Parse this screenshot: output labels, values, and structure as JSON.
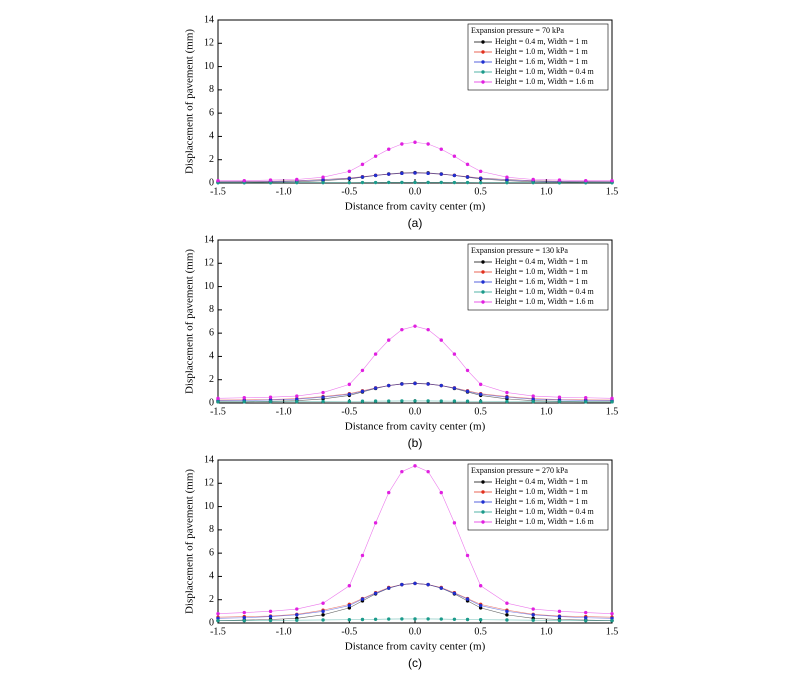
{
  "chart_data": [
    {
      "type": "line",
      "caption": "(a)",
      "xlabel": "Distance from cavity center (m)",
      "ylabel": "Displacement of pavement (mm)",
      "legend_title": "Expansion pressure = 70 kPa",
      "legend": "upper right",
      "x": [
        -1.5,
        -1.3,
        -1.1,
        -0.9,
        -0.7,
        -0.5,
        -0.4,
        -0.3,
        -0.2,
        -0.1,
        0,
        0.1,
        0.2,
        0.3,
        0.4,
        0.5,
        0.7,
        0.9,
        1.1,
        1.3,
        1.5
      ],
      "xlim": [
        -1.5,
        1.5
      ],
      "xticks": [
        -1.5,
        {
          "value": -1,
          "label": "-1.0"
        },
        -0.5,
        {
          "value": 0,
          "label": "0.0"
        },
        0.5,
        {
          "value": 1,
          "label": "1.0"
        },
        1.5
      ],
      "ylim": [
        0,
        14
      ],
      "yticks": [
        0,
        2,
        4,
        6,
        8,
        10,
        12,
        14
      ],
      "series": [
        {
          "name": "Height = 0.4 m, Width = 1 m",
          "color": "#000000",
          "values": [
            0.05,
            0.05,
            0.08,
            0.1,
            0.2,
            0.35,
            0.5,
            0.65,
            0.78,
            0.87,
            0.9,
            0.87,
            0.78,
            0.65,
            0.5,
            0.35,
            0.2,
            0.1,
            0.08,
            0.05,
            0.05
          ]
        },
        {
          "name": "Height = 1.0 m, Width = 1 m",
          "color": "#e0301e",
          "values": [
            0.12,
            0.13,
            0.15,
            0.2,
            0.3,
            0.42,
            0.54,
            0.66,
            0.76,
            0.83,
            0.86,
            0.83,
            0.76,
            0.66,
            0.54,
            0.42,
            0.3,
            0.2,
            0.15,
            0.13,
            0.12
          ]
        },
        {
          "name": "Height = 1.6 m, Width = 1 m",
          "color": "#1f2fd0",
          "values": [
            0.1,
            0.11,
            0.13,
            0.18,
            0.28,
            0.4,
            0.52,
            0.65,
            0.76,
            0.83,
            0.86,
            0.83,
            0.76,
            0.65,
            0.52,
            0.4,
            0.28,
            0.18,
            0.13,
            0.11,
            0.1
          ]
        },
        {
          "name": "Height = 1.0 m, Width = 0.4 m",
          "color": "#1a9a8a",
          "values": [
            0.02,
            0.02,
            0.02,
            0.03,
            0.03,
            0.03,
            0.04,
            0.04,
            0.05,
            0.05,
            0.05,
            0.05,
            0.05,
            0.04,
            0.04,
            0.03,
            0.03,
            0.03,
            0.02,
            0.02,
            0.02
          ]
        },
        {
          "name": "Height = 1.0 m, Width = 1.6 m",
          "color": "#e020e0",
          "values": [
            0.2,
            0.2,
            0.25,
            0.3,
            0.5,
            1.0,
            1.6,
            2.3,
            2.9,
            3.35,
            3.5,
            3.35,
            2.9,
            2.3,
            1.6,
            1.0,
            0.5,
            0.3,
            0.25,
            0.2,
            0.2
          ]
        }
      ]
    },
    {
      "type": "line",
      "caption": "(b)",
      "xlabel": "Distance from cavity center (m)",
      "ylabel": "Displacement of pavement (mm)",
      "legend_title": "Expansion pressure = 130 kPa",
      "legend": "upper right",
      "x": [
        -1.5,
        -1.3,
        -1.1,
        -0.9,
        -0.7,
        -0.5,
        -0.4,
        -0.3,
        -0.2,
        -0.1,
        0,
        0.1,
        0.2,
        0.3,
        0.4,
        0.5,
        0.7,
        0.9,
        1.1,
        1.3,
        1.5
      ],
      "xlim": [
        -1.5,
        1.5
      ],
      "xticks": [
        -1.5,
        {
          "value": -1,
          "label": "-1.0"
        },
        -0.5,
        {
          "value": 0,
          "label": "0.0"
        },
        0.5,
        {
          "value": 1,
          "label": "1.0"
        },
        1.5
      ],
      "ylim": [
        0,
        14
      ],
      "yticks": [
        0,
        2,
        4,
        6,
        8,
        10,
        12,
        14
      ],
      "series": [
        {
          "name": "Height = 0.4 m, Width = 1 m",
          "color": "#000000",
          "values": [
            0.1,
            0.1,
            0.15,
            0.2,
            0.35,
            0.65,
            0.95,
            1.25,
            1.5,
            1.65,
            1.7,
            1.65,
            1.5,
            1.25,
            0.95,
            0.65,
            0.35,
            0.2,
            0.15,
            0.1,
            0.1
          ]
        },
        {
          "name": "Height = 1.0 m, Width = 1 m",
          "color": "#e0301e",
          "values": [
            0.25,
            0.27,
            0.3,
            0.38,
            0.55,
            0.8,
            1.05,
            1.3,
            1.5,
            1.63,
            1.68,
            1.63,
            1.5,
            1.3,
            1.05,
            0.8,
            0.55,
            0.38,
            0.3,
            0.27,
            0.25
          ]
        },
        {
          "name": "Height = 1.6 m, Width = 1 m",
          "color": "#1f2fd0",
          "values": [
            0.2,
            0.22,
            0.26,
            0.33,
            0.5,
            0.75,
            1.0,
            1.28,
            1.5,
            1.63,
            1.68,
            1.63,
            1.5,
            1.28,
            1.0,
            0.75,
            0.5,
            0.33,
            0.26,
            0.22,
            0.2
          ]
        },
        {
          "name": "Height = 1.0 m, Width = 0.4 m",
          "color": "#1a9a8a",
          "values": [
            0.1,
            0.1,
            0.12,
            0.12,
            0.13,
            0.14,
            0.15,
            0.16,
            0.17,
            0.18,
            0.18,
            0.18,
            0.17,
            0.16,
            0.15,
            0.14,
            0.13,
            0.12,
            0.12,
            0.1,
            0.1
          ]
        },
        {
          "name": "Height = 1.0 m, Width = 1.6 m",
          "color": "#e020e0",
          "values": [
            0.4,
            0.45,
            0.5,
            0.6,
            0.9,
            1.6,
            2.8,
            4.2,
            5.4,
            6.3,
            6.6,
            6.3,
            5.4,
            4.2,
            2.8,
            1.6,
            0.9,
            0.6,
            0.5,
            0.45,
            0.4
          ]
        }
      ]
    },
    {
      "type": "line",
      "caption": "(c)",
      "xlabel": "Distance from cavity center (m)",
      "ylabel": "Displacement of pavement (mm)",
      "legend_title": "Expansion pressure = 270 kPa",
      "legend": "upper right",
      "x": [
        -1.5,
        -1.3,
        -1.1,
        -0.9,
        -0.7,
        -0.5,
        -0.4,
        -0.3,
        -0.2,
        -0.1,
        0,
        0.1,
        0.2,
        0.3,
        0.4,
        0.5,
        0.7,
        0.9,
        1.1,
        1.3,
        1.5
      ],
      "xlim": [
        -1.5,
        1.5
      ],
      "xticks": [
        -1.5,
        {
          "value": -1,
          "label": "-1.0"
        },
        -0.5,
        {
          "value": 0,
          "label": "0.0"
        },
        0.5,
        {
          "value": 1,
          "label": "1.0"
        },
        1.5
      ],
      "ylim": [
        0,
        14
      ],
      "yticks": [
        0,
        2,
        4,
        6,
        8,
        10,
        12,
        14
      ],
      "series": [
        {
          "name": "Height = 0.4 m, Width = 1 m",
          "color": "#000000",
          "values": [
            0.2,
            0.25,
            0.3,
            0.4,
            0.7,
            1.3,
            1.9,
            2.5,
            3.0,
            3.3,
            3.4,
            3.3,
            3.0,
            2.5,
            1.9,
            1.3,
            0.7,
            0.4,
            0.3,
            0.25,
            0.2
          ]
        },
        {
          "name": "Height = 1.0 m, Width = 1 m",
          "color": "#e0301e",
          "values": [
            0.5,
            0.55,
            0.6,
            0.75,
            1.1,
            1.6,
            2.1,
            2.6,
            3.05,
            3.3,
            3.4,
            3.3,
            3.05,
            2.6,
            2.1,
            1.6,
            1.1,
            0.75,
            0.6,
            0.55,
            0.5
          ]
        },
        {
          "name": "Height = 1.6 m, Width = 1 m",
          "color": "#1f2fd0",
          "values": [
            0.4,
            0.45,
            0.55,
            0.7,
            1.0,
            1.5,
            2.05,
            2.55,
            3.0,
            3.3,
            3.4,
            3.3,
            3.0,
            2.55,
            2.05,
            1.5,
            1.0,
            0.7,
            0.55,
            0.45,
            0.4
          ]
        },
        {
          "name": "Height = 1.0 m, Width = 0.4 m",
          "color": "#1a9a8a",
          "values": [
            0.2,
            0.2,
            0.22,
            0.24,
            0.26,
            0.28,
            0.3,
            0.32,
            0.34,
            0.35,
            0.35,
            0.35,
            0.34,
            0.32,
            0.3,
            0.28,
            0.26,
            0.24,
            0.22,
            0.2,
            0.2
          ]
        },
        {
          "name": "Height = 1.0 m, Width = 1.6 m",
          "color": "#e020e0",
          "values": [
            0.8,
            0.9,
            1.0,
            1.2,
            1.7,
            3.2,
            5.8,
            8.6,
            11.2,
            13.0,
            13.5,
            13.0,
            11.2,
            8.6,
            5.8,
            3.2,
            1.7,
            1.2,
            1.0,
            0.9,
            0.8
          ]
        }
      ]
    }
  ]
}
